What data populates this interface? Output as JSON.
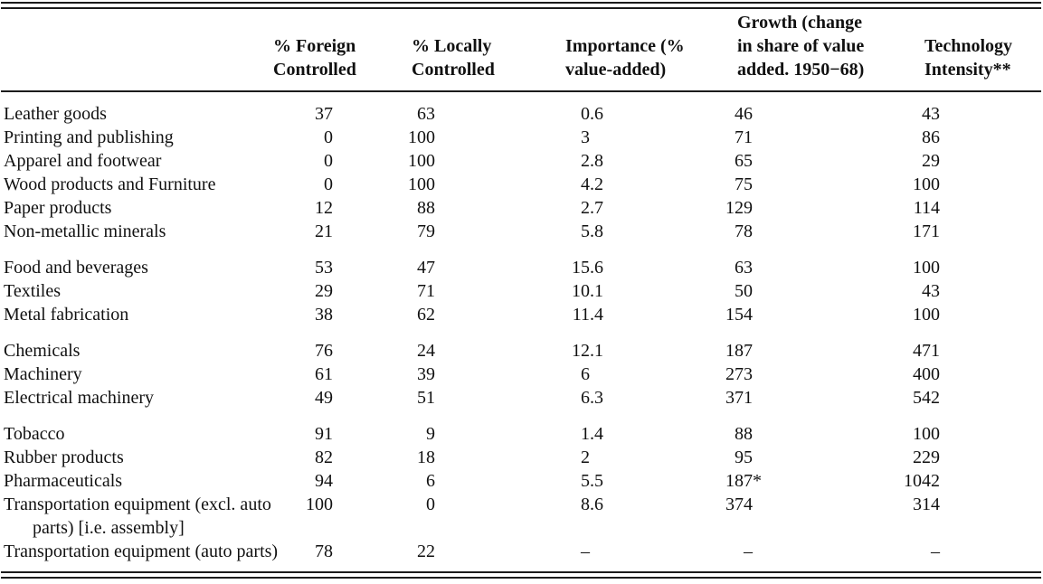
{
  "table": {
    "header": {
      "foreign": {
        "line1": "% Foreign",
        "line2": "Controlled"
      },
      "locally": {
        "line1": "% Locally",
        "line2": "Controlled"
      },
      "importance": {
        "line1": "Importance (%",
        "line2": "value-added)"
      },
      "growth": {
        "line1": "Growth (change",
        "line2": "in share of value",
        "line3": "added. 1950−68)"
      },
      "technology": {
        "line1": "Technology",
        "line2": "Intensity**"
      }
    },
    "rows": [
      {
        "label": "Leather goods",
        "foreign": "37",
        "locally": "63",
        "importance": "0.6",
        "growth": "46",
        "technology": "43"
      },
      {
        "label": "Printing and publishing",
        "foreign": "0",
        "locally": "100",
        "importance": "3",
        "growth": "71",
        "technology": "86"
      },
      {
        "label": "Apparel and footwear",
        "foreign": "0",
        "locally": "100",
        "importance": "2.8",
        "growth": "65",
        "technology": "29"
      },
      {
        "label": "Wood products and Furniture",
        "foreign": "0",
        "locally": "100",
        "importance": "4.2",
        "growth": "75",
        "technology": "100"
      },
      {
        "label": "Paper products",
        "foreign": "12",
        "locally": "88",
        "importance": "2.7",
        "growth": "129",
        "technology": "114"
      },
      {
        "label": "Non-metallic minerals",
        "foreign": "21",
        "locally": "79",
        "importance": "5.8",
        "growth": "78",
        "technology": "171"
      },
      {
        "label": "Food and beverages",
        "group_start": true,
        "foreign": "53",
        "locally": "47",
        "importance": "15.6",
        "growth": "63",
        "technology": "100"
      },
      {
        "label": "Textiles",
        "foreign": "29",
        "locally": "71",
        "importance": "10.1",
        "growth": "50",
        "technology": "43"
      },
      {
        "label": "Metal fabrication",
        "foreign": "38",
        "locally": "62",
        "importance": "11.4",
        "growth": "154",
        "technology": "100"
      },
      {
        "label": "Chemicals",
        "group_start": true,
        "foreign": "76",
        "locally": "24",
        "importance": "12.1",
        "growth": "187",
        "technology": "471"
      },
      {
        "label": "Machinery",
        "foreign": "61",
        "locally": "39",
        "importance": "6",
        "growth": "273",
        "technology": "400"
      },
      {
        "label": "Electrical machinery",
        "foreign": "49",
        "locally": "51",
        "importance": "6.3",
        "growth": "371",
        "technology": "542"
      },
      {
        "label": "Tobacco",
        "group_start": true,
        "foreign": "91",
        "locally": "9",
        "importance": "1.4",
        "growth": "88",
        "technology": "100"
      },
      {
        "label": "Rubber products",
        "foreign": "82",
        "locally": "18",
        "importance": "2",
        "growth": "95",
        "technology": "229"
      },
      {
        "label": "Pharmaceuticals",
        "foreign": "94",
        "locally": "6",
        "importance": "5.5",
        "growth": "187*",
        "technology": "1042"
      },
      {
        "label": "Transportation equipment (excl. auto",
        "label2": "parts) [i.e. assembly]",
        "foreign": "100",
        "locally": "0",
        "importance": "8.6",
        "growth": "374",
        "technology": "314"
      },
      {
        "label": "Transportation equipment (auto parts)",
        "foreign": "78",
        "locally": "22",
        "importance": "–",
        "growth": "–",
        "technology": "–"
      }
    ]
  }
}
